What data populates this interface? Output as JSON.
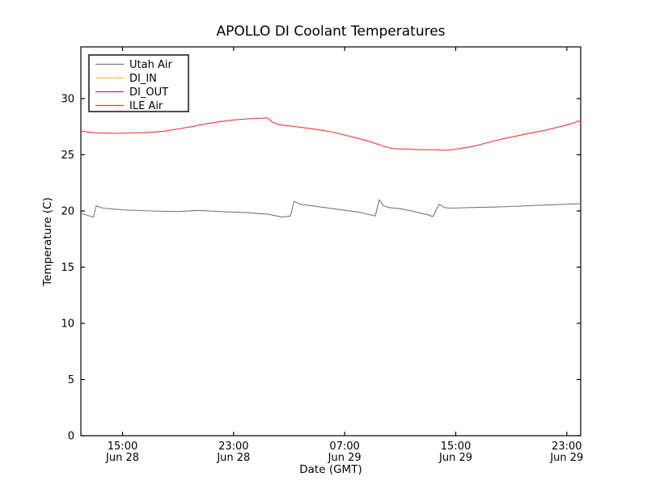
{
  "chart_data": {
    "type": "line",
    "title": "APOLLO DI Coolant Temperatures",
    "xlabel": "Date (GMT)",
    "ylabel": "Temperature (C)",
    "grid": false,
    "legend_position": "upper left",
    "x_unit": "hours since Jun 28 12:00 GMT",
    "xlim": [
      0,
      36
    ],
    "ylim": [
      0,
      34.6
    ],
    "y_ticks": [
      0,
      5,
      10,
      15,
      20,
      25,
      30
    ],
    "x_ticks": [
      {
        "t": 3,
        "time": "15:00",
        "date": "Jun 28"
      },
      {
        "t": 11,
        "time": "23:00",
        "date": "Jun 28"
      },
      {
        "t": 19,
        "time": "07:00",
        "date": "Jun 29"
      },
      {
        "t": 27,
        "time": "15:00",
        "date": "Jun 29"
      },
      {
        "t": 35,
        "time": "23:00",
        "date": "Jun 29"
      }
    ],
    "series": [
      {
        "name": "Utah Air",
        "color": "#787878",
        "points": [
          [
            0,
            19.8
          ],
          [
            0.5,
            19.6
          ],
          [
            0.9,
            19.45
          ],
          [
            1.1,
            20.45
          ],
          [
            1.6,
            20.25
          ],
          [
            3,
            20.1
          ],
          [
            5,
            20.0
          ],
          [
            7,
            19.95
          ],
          [
            8.5,
            20.05
          ],
          [
            10,
            19.95
          ],
          [
            12,
            19.85
          ],
          [
            13.5,
            19.7
          ],
          [
            14.5,
            19.45
          ],
          [
            15.1,
            19.55
          ],
          [
            15.35,
            20.85
          ],
          [
            15.8,
            20.6
          ],
          [
            17,
            20.4
          ],
          [
            18.5,
            20.15
          ],
          [
            20,
            19.9
          ],
          [
            21.2,
            19.55
          ],
          [
            21.5,
            21.0
          ],
          [
            21.8,
            20.45
          ],
          [
            22.2,
            20.3
          ],
          [
            23,
            20.2
          ],
          [
            24,
            19.95
          ],
          [
            25,
            19.65
          ],
          [
            25.35,
            19.5
          ],
          [
            25.8,
            20.6
          ],
          [
            26.2,
            20.3
          ],
          [
            26.6,
            20.25
          ],
          [
            28,
            20.3
          ],
          [
            30,
            20.35
          ],
          [
            32,
            20.45
          ],
          [
            34,
            20.55
          ],
          [
            36,
            20.65
          ]
        ]
      },
      {
        "name": "DI_IN",
        "color": "#ffbb33",
        "points": []
      },
      {
        "name": "DI_OUT",
        "color": "#993399",
        "points": []
      },
      {
        "name": "ILE Air",
        "color": "#ff3333",
        "points": [
          [
            0,
            27.1
          ],
          [
            1,
            26.95
          ],
          [
            2.5,
            26.9
          ],
          [
            4,
            26.95
          ],
          [
            5,
            27.0
          ],
          [
            6,
            27.1
          ],
          [
            7,
            27.3
          ],
          [
            8,
            27.5
          ],
          [
            9,
            27.75
          ],
          [
            10,
            27.95
          ],
          [
            11,
            28.1
          ],
          [
            12,
            28.2
          ],
          [
            13,
            28.25
          ],
          [
            13.4,
            28.3
          ],
          [
            13.8,
            27.9
          ],
          [
            14.3,
            27.65
          ],
          [
            15.5,
            27.5
          ],
          [
            17,
            27.25
          ],
          [
            18,
            27.05
          ],
          [
            19,
            26.75
          ],
          [
            20,
            26.45
          ],
          [
            21,
            26.1
          ],
          [
            21.8,
            25.75
          ],
          [
            22.4,
            25.55
          ],
          [
            23.5,
            25.5
          ],
          [
            24.5,
            25.45
          ],
          [
            25.5,
            25.45
          ],
          [
            26.3,
            25.4
          ],
          [
            27,
            25.5
          ],
          [
            27.8,
            25.65
          ],
          [
            28.6,
            25.85
          ],
          [
            29.5,
            26.15
          ],
          [
            30.5,
            26.45
          ],
          [
            31.5,
            26.7
          ],
          [
            32.5,
            26.95
          ],
          [
            33.5,
            27.2
          ],
          [
            34.5,
            27.5
          ],
          [
            35.3,
            27.75
          ],
          [
            36,
            28.05
          ]
        ]
      }
    ]
  }
}
